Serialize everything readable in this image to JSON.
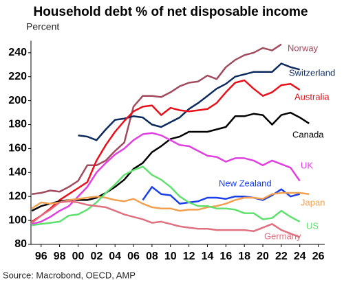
{
  "chart_data": {
    "type": "line",
    "title": "Household debt % of net disposable income",
    "subtitle": "Percent",
    "source": "Source: Macrobond, OECD, AMP",
    "x": [
      1995,
      1996,
      1997,
      1998,
      1999,
      2000,
      2001,
      2002,
      2003,
      2004,
      2005,
      2006,
      2007,
      2008,
      2009,
      2010,
      2011,
      2012,
      2013,
      2014,
      2015,
      2016,
      2017,
      2018,
      2019,
      2020,
      2021,
      2022,
      2023,
      2024,
      2025
    ],
    "xlim": [
      1994.9,
      2026.7
    ],
    "xticks": [
      {
        "value": 1996,
        "label": "96"
      },
      {
        "value": 1998,
        "label": "98"
      },
      {
        "value": 2000,
        "label": "00"
      },
      {
        "value": 2002,
        "label": "02"
      },
      {
        "value": 2004,
        "label": "04"
      },
      {
        "value": 2006,
        "label": "06"
      },
      {
        "value": 2008,
        "label": "08"
      },
      {
        "value": 2010,
        "label": "10"
      },
      {
        "value": 2012,
        "label": "12"
      },
      {
        "value": 2014,
        "label": "14"
      },
      {
        "value": 2016,
        "label": "16"
      },
      {
        "value": 2018,
        "label": "18"
      },
      {
        "value": 2020,
        "label": "20"
      },
      {
        "value": 2022,
        "label": "22"
      },
      {
        "value": 2024,
        "label": "24"
      },
      {
        "value": 2026,
        "label": "26"
      }
    ],
    "ylim": [
      80,
      250
    ],
    "yticks": [
      80,
      100,
      120,
      140,
      160,
      180,
      200,
      220,
      240
    ],
    "series": [
      {
        "name": "Norway",
        "color": "#a04a5e",
        "values": [
          122,
          123,
          125,
          124,
          128,
          133,
          146,
          146,
          150,
          158,
          165,
          195,
          204,
          204,
          203,
          207,
          212,
          215,
          216,
          221,
          218,
          228,
          234,
          238,
          240,
          244,
          242,
          247,
          null,
          null,
          null
        ]
      },
      {
        "name": "Switzerland",
        "color": "#0d2a5c",
        "values": [
          null,
          null,
          null,
          null,
          null,
          171,
          170,
          167,
          176,
          184,
          185,
          187,
          186,
          180,
          178,
          182,
          186,
          193,
          198,
          204,
          210,
          214,
          220,
          222,
          224,
          224,
          224,
          231,
          228,
          226,
          null
        ]
      },
      {
        "name": "Australia",
        "color": "#e8101a",
        "values": [
          99,
          104,
          110,
          117,
          122,
          127,
          132,
          150,
          163,
          174,
          183,
          191,
          195,
          196,
          188,
          194,
          192,
          191,
          192,
          193,
          198,
          207,
          215,
          217,
          210,
          204,
          207,
          213,
          214,
          209,
          null
        ]
      },
      {
        "name": "Canada",
        "color": "#000000",
        "values": [
          108,
          112,
          114,
          116,
          117,
          117,
          117,
          119,
          123,
          128,
          134,
          143,
          148,
          157,
          162,
          168,
          170,
          174,
          174,
          174,
          176,
          178,
          187,
          187,
          189,
          188,
          180,
          188,
          190,
          186,
          181
        ]
      },
      {
        "name": "UK",
        "color": "#e040e0",
        "values": [
          97,
          99,
          103,
          108,
          112,
          120,
          128,
          140,
          148,
          155,
          160,
          167,
          172,
          173,
          171,
          167,
          163,
          162,
          158,
          154,
          153,
          149,
          152,
          152,
          150,
          146,
          150,
          147,
          144,
          133,
          null
        ]
      },
      {
        "name": "New Zealand",
        "color": "#1a3ee8",
        "values": [
          null,
          null,
          null,
          null,
          null,
          null,
          null,
          null,
          null,
          null,
          null,
          null,
          117,
          128,
          122,
          121,
          114,
          115,
          116,
          119,
          119,
          118,
          120,
          120,
          119,
          117,
          121,
          126,
          120,
          122,
          null
        ]
      },
      {
        "name": "Japan",
        "color": "#f0a050",
        "values": [
          110,
          115,
          114,
          115,
          117,
          118,
          119,
          120,
          119,
          117,
          116,
          118,
          114,
          111,
          110,
          110,
          108,
          109,
          109,
          111,
          112,
          114,
          117,
          119,
          119,
          118,
          122,
          123,
          123,
          123,
          122
        ]
      },
      {
        "name": "US",
        "color": "#5fe06f",
        "values": [
          96,
          97,
          98,
          99,
          104,
          105,
          109,
          115,
          123,
          130,
          138,
          142,
          145,
          138,
          134,
          128,
          120,
          115,
          112,
          112,
          110,
          110,
          109,
          106,
          106,
          101,
          102,
          108,
          103,
          99,
          null
        ]
      },
      {
        "name": "Germany",
        "color": "#e07080",
        "values": [
          98,
          104,
          109,
          115,
          116,
          115,
          113,
          112,
          111,
          108,
          105,
          103,
          101,
          98,
          99,
          97,
          95,
          94,
          93,
          93,
          92,
          92,
          92,
          92,
          91,
          94,
          97,
          92,
          89,
          86,
          null
        ]
      }
    ]
  }
}
